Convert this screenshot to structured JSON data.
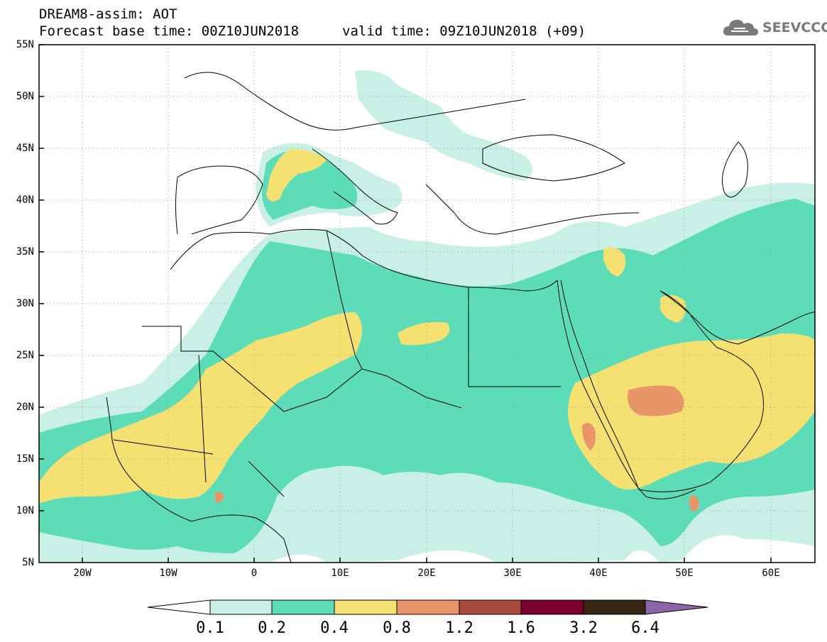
{
  "header": {
    "model_title": "DREAM8-assim: AOT",
    "base_time": "Forecast base time: 00Z10JUN2018",
    "valid_time": "valid time: 09Z10JUN2018 (+09)",
    "logo_text": "SEEVCCC"
  },
  "axes": {
    "lat_labels": [
      "55N",
      "50N",
      "45N",
      "40N",
      "35N",
      "30N",
      "25N",
      "20N",
      "15N",
      "10N",
      "5N"
    ],
    "lon_labels": [
      "20W",
      "10W",
      "0",
      "10E",
      "20E",
      "30E",
      "40E",
      "50E",
      "60E"
    ],
    "lat_range": [
      5,
      55
    ],
    "lon_range": [
      -25,
      65
    ]
  },
  "colorbar": {
    "levels": [
      "0.1",
      "0.2",
      "0.4",
      "0.8",
      "1.2",
      "1.6",
      "3.2",
      "6.4"
    ],
    "colors": [
      "#ffffff",
      "#c8f0e6",
      "#5ddcb8",
      "#f5e171",
      "#e8956a",
      "#a94b3c",
      "#7a0030",
      "#3a2412",
      "#8e64a8"
    ]
  },
  "colors": {
    "c1": "#c8f0e6",
    "c2": "#5ddcb8",
    "c3": "#f5e171",
    "c4": "#e8956a",
    "c5": "#a94b3c",
    "coast": "#000000",
    "grid": "#888888"
  }
}
